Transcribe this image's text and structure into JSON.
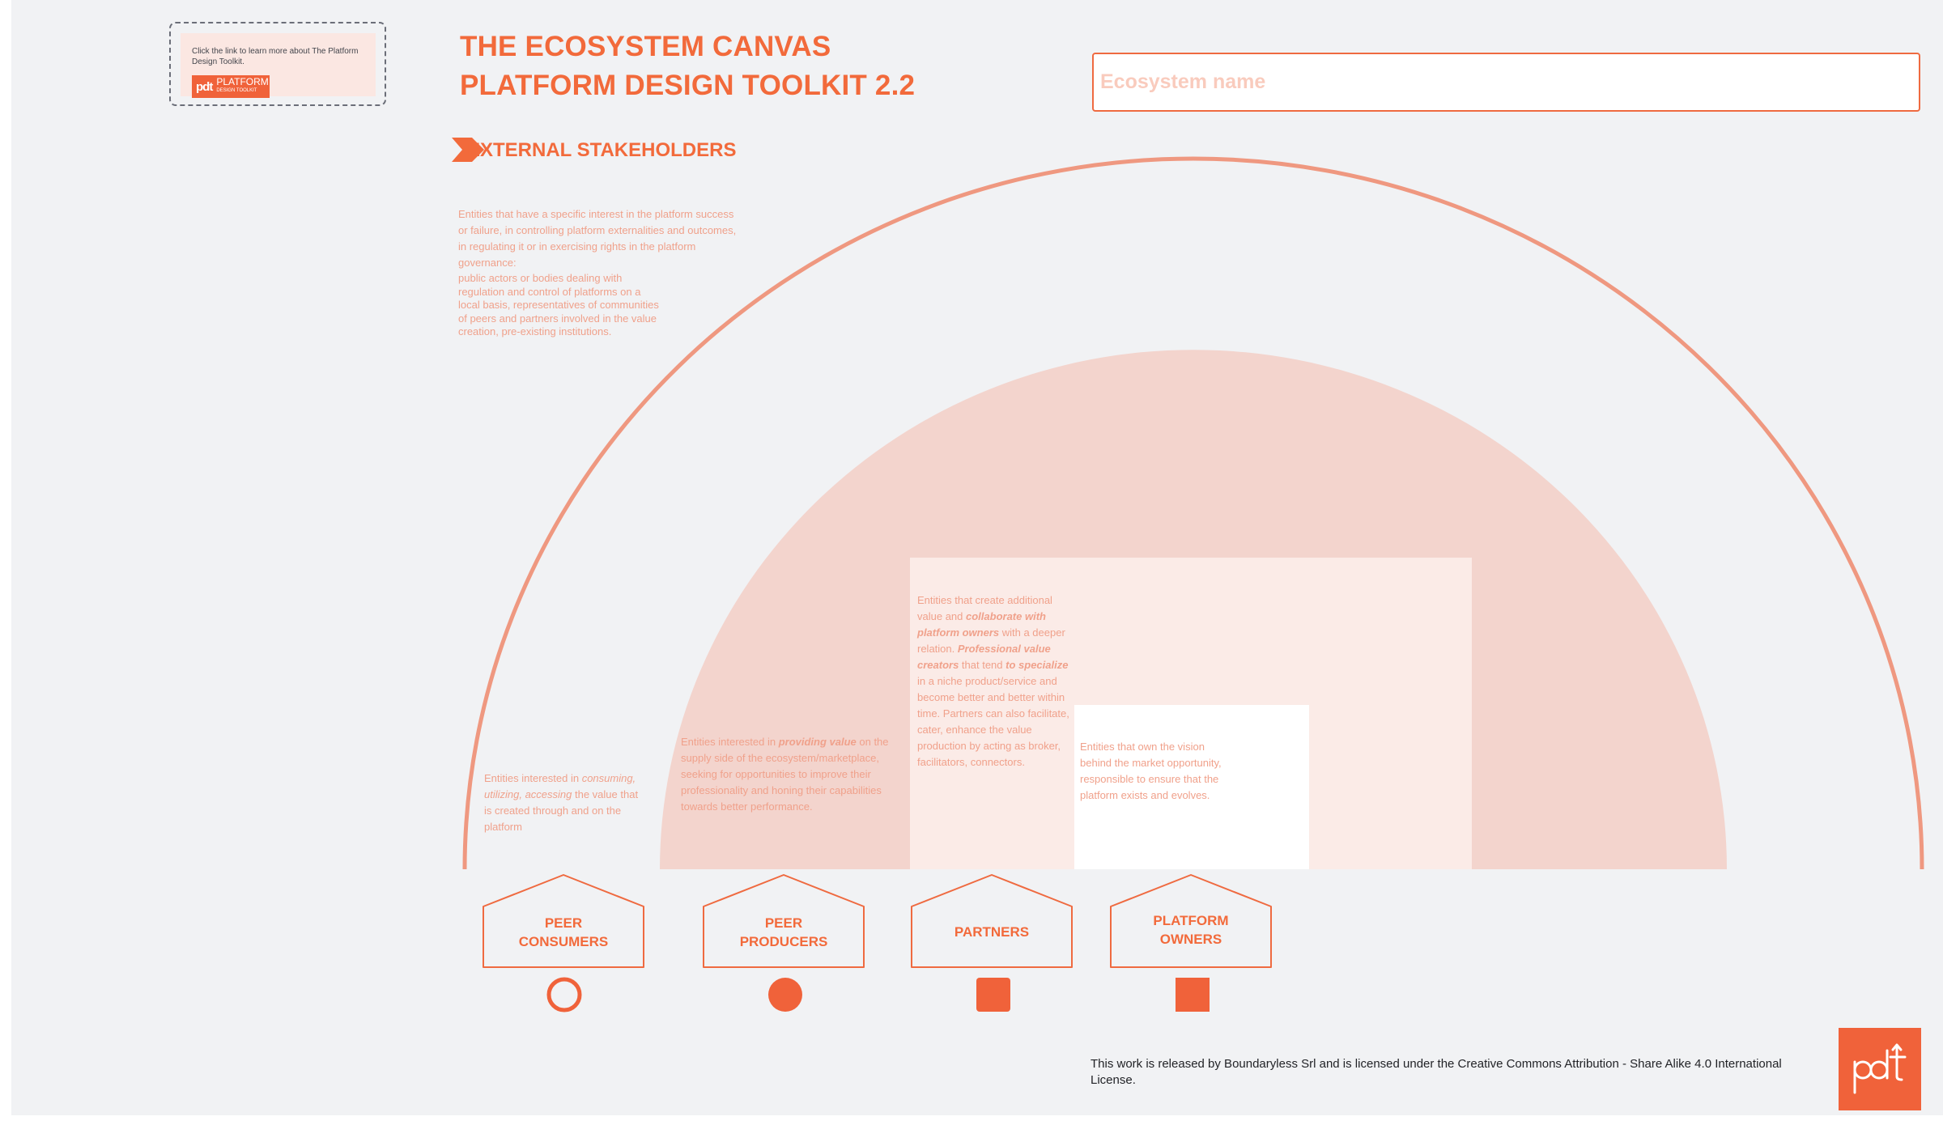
{
  "title": {
    "line1": "THE ECOSYSTEM CANVAS",
    "line2": "PLATFORM DESIGN TOOLKIT 2.2"
  },
  "ecosystem_name": {
    "placeholder": "Ecosystem name",
    "value": ""
  },
  "link_card": {
    "text": "Click the link to learn more about The Platform Design Toolkit.",
    "logo_mark": "pdt",
    "logo_line1": "PLATFORM",
    "logo_line2": "DESIGN TOOLKIT"
  },
  "section": {
    "header": "EXTERNAL STAKEHOLDERS",
    "description_part1": "Entities that have a specific interest in the platform success or failure, in controlling platform externalities and outcomes, in regulating it or in exercising rights in the platform governance:",
    "description_part2": "public actors or bodies dealing with regulation and control of platforms on a local basis, representatives of communities of peers and partners involved in the value creation, pre-existing institutions."
  },
  "roles": {
    "peer_consumers": {
      "label_line1": "PEER",
      "label_line2": "CONSUMERS",
      "desc_a": "Entities interested in ",
      "desc_b": "consuming, utilizing, accessing",
      "desc_c": " the value that is created through and on the platform"
    },
    "peer_producers": {
      "label_line1": "PEER",
      "label_line2": "PRODUCERS",
      "desc_a": "Entities interested in ",
      "desc_b": "providing value",
      "desc_c": " on the supply side of the ecosystem/marketplace, seeking for opportunities to improve their professionality and honing their capabilities towards better performance."
    },
    "partners": {
      "label": "PARTNERS",
      "desc_a": "Entities that create additional value and ",
      "desc_b": "collaborate with platform owners",
      "desc_c": " with a deeper relation. ",
      "desc_d": "Professional value creators",
      "desc_e": " that tend ",
      "desc_f": "to specialize",
      "desc_g": " in a niche product/service and become better and better within time. Partners can also facilitate, cater, enhance the value production by acting as broker, facilitators, connectors."
    },
    "platform_owners": {
      "label_line1": "PLATFORM",
      "label_line2": "OWNERS",
      "desc": "Entities that own the vision behind the market opportunity, responsible to ensure that the platform exists and evolves."
    }
  },
  "license": "This work is released by Boundaryless Srl and is licensed under the Creative Commons Attribution - Share Alike 4.0 International License.",
  "colors": {
    "accent": "#f26a3b",
    "arc_stroke": "#ef9880",
    "inner_semicircle": "#f3d4cd",
    "partners_zone": "#fbebe7",
    "owners_zone": "#ffffff",
    "canvas_bg": "#f1f2f4"
  },
  "icons": {
    "section_marker": "chevron-right-icon",
    "peer_consumers": "circle-outline-icon",
    "peer_producers": "circle-filled-icon",
    "partners": "rounded-square-icon",
    "platform_owners": "square-icon",
    "footer_logo": "pdt-logo-icon"
  }
}
